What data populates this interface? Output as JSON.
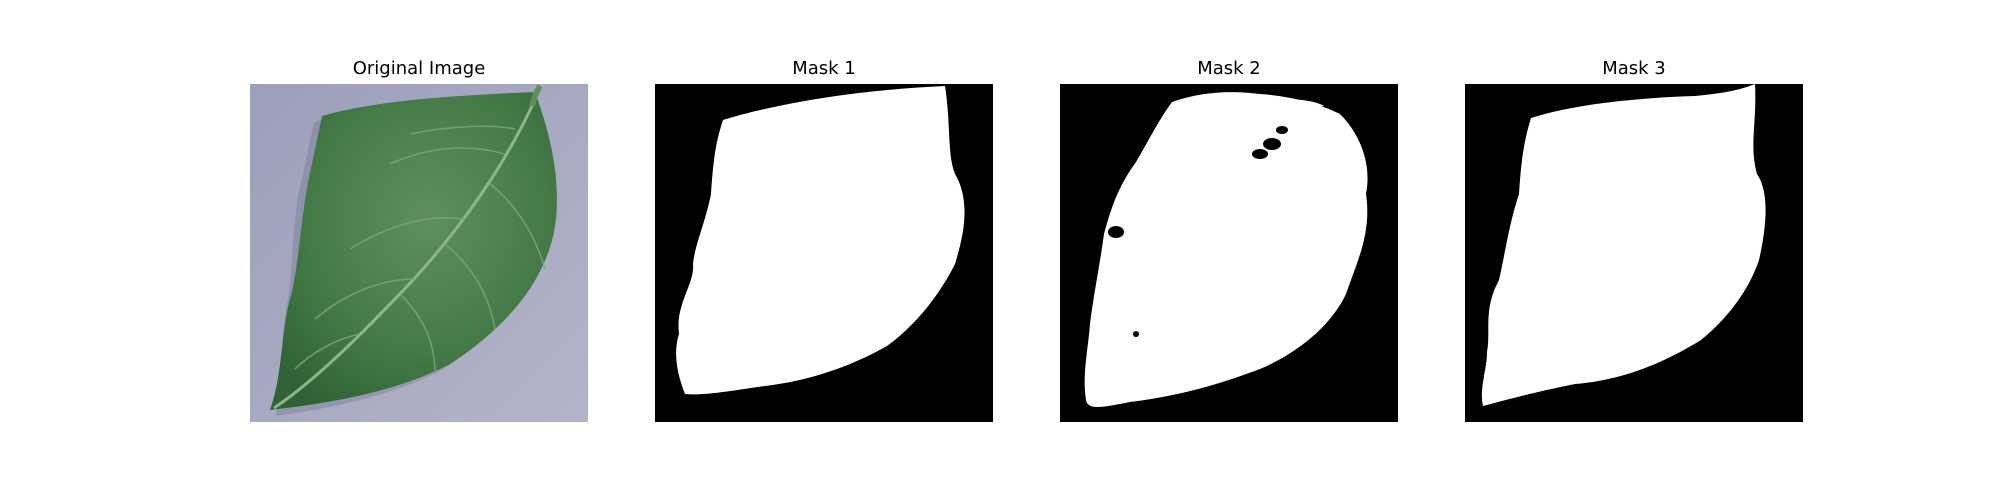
{
  "figure": {
    "panels": [
      {
        "title": "Original Image",
        "kind": "photo"
      },
      {
        "title": "Mask 1",
        "kind": "mask"
      },
      {
        "title": "Mask 2",
        "kind": "mask"
      },
      {
        "title": "Mask 3",
        "kind": "mask"
      }
    ]
  },
  "colors": {
    "photo_background": "#a4a6bd",
    "leaf_dark": "#3f7443",
    "leaf_light": "#5f8f5c",
    "vein": "#8fb58a",
    "mask_background": "#000000",
    "mask_foreground": "#ffffff"
  }
}
